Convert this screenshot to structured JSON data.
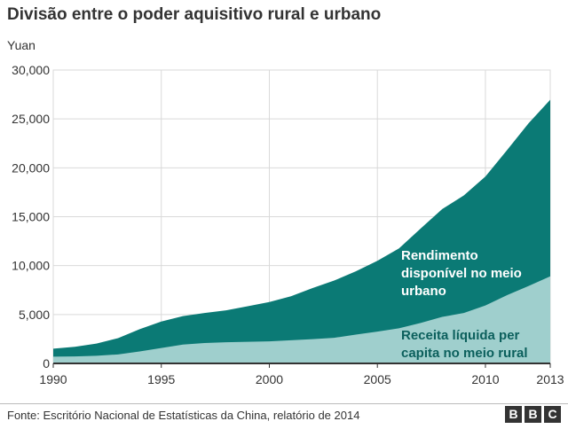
{
  "title": "Divisão entre o poder aquisitivo rural e urbano",
  "source": "Fonte: Escritório Nacional de Estatísticas da China, relatório de 2014",
  "logo_letters": [
    "B",
    "B",
    "C"
  ],
  "colors": {
    "urban": "#0b7a75",
    "rural": "#9fcfcd",
    "grid": "#d9d9d9",
    "axis": "#333333"
  },
  "chart_data": {
    "type": "area",
    "title": "Divisão entre o poder aquisitivo rural e urbano",
    "ylabel": "Yuan",
    "xlabel": "",
    "xlim": [
      1990,
      2013
    ],
    "ylim": [
      0,
      30000
    ],
    "yticks": [
      0,
      5000,
      10000,
      15000,
      20000,
      25000,
      30000
    ],
    "ytick_labels": [
      "0",
      "5,000",
      "10,000",
      "15,000",
      "20,000",
      "25,000",
      "30,000"
    ],
    "xticks": [
      1990,
      1995,
      2000,
      2005,
      2010,
      2013
    ],
    "xtick_labels": [
      "1990",
      "1995",
      "2000",
      "2005",
      "2010",
      "2013"
    ],
    "grid": true,
    "x": [
      1990,
      1991,
      1992,
      1993,
      1994,
      1995,
      1996,
      1997,
      1998,
      1999,
      2000,
      2001,
      2002,
      2003,
      2004,
      2005,
      2006,
      2007,
      2008,
      2009,
      2010,
      2011,
      2012,
      2013
    ],
    "series": [
      {
        "name": "Rendimento disponível no meio urbano",
        "label_lines": [
          "Rendimento",
          "disponível no meio",
          "urbano"
        ],
        "color": "#0b7a75",
        "values": [
          1510,
          1700,
          2030,
          2580,
          3500,
          4280,
          4840,
          5160,
          5430,
          5850,
          6280,
          6860,
          7700,
          8470,
          9420,
          10490,
          11760,
          13790,
          15780,
          17170,
          19110,
          21810,
          24560,
          26960
        ]
      },
      {
        "name": "Receita líquida per capita no meio rural",
        "label_lines": [
          "Receita líquida per",
          "capita no meio rural"
        ],
        "color": "#9fcfcd",
        "values": [
          690,
          710,
          780,
          920,
          1220,
          1580,
          1930,
          2090,
          2160,
          2210,
          2250,
          2370,
          2480,
          2620,
          2940,
          3250,
          3590,
          4140,
          4760,
          5150,
          5920,
          6980,
          7920,
          8900
        ]
      }
    ]
  }
}
